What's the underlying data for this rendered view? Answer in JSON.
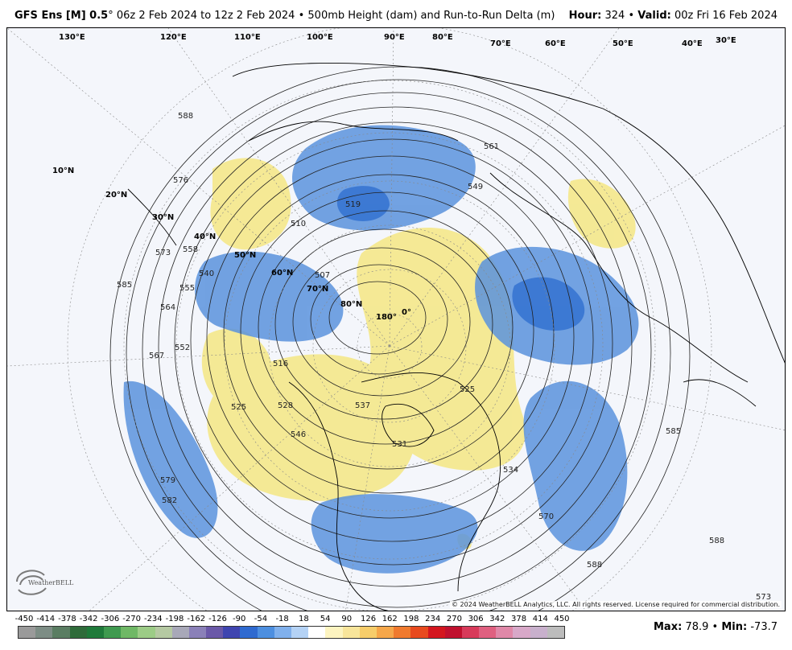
{
  "header": {
    "product": "GFS Ens [M] 0.5",
    "degree": "°",
    "run_range": "06z 2 Feb 2024 to 12z 2 Feb 2024",
    "sep": "•",
    "field": "500mb Height (dam) and Run-to-Run Delta (m)",
    "hour_label": "Hour:",
    "hour_value": "324",
    "valid_label": "Valid:",
    "valid_value": "00z Fri 16 Feb 2024"
  },
  "map": {
    "latitude_labels": [
      "10°N",
      "20°N",
      "30°N",
      "40°N",
      "50°N",
      "60°N",
      "70°N",
      "80°N"
    ],
    "longitude_labels": [
      "130°E",
      "120°E",
      "110°E",
      "100°E",
      "90°E",
      "80°E",
      "70°E",
      "60°E",
      "50°E",
      "40°E",
      "30°E",
      "180°",
      "0°"
    ],
    "contour_labels": [
      "588",
      "576",
      "573",
      "558",
      "555",
      "540",
      "564",
      "552",
      "567",
      "585",
      "579",
      "582",
      "525",
      "528",
      "546",
      "537",
      "531",
      "516",
      "510",
      "507",
      "519",
      "561",
      "549",
      "534",
      "570",
      "585",
      "588",
      "588",
      "573",
      "525"
    ],
    "colors": {
      "ocean": "#f4f6fb",
      "positive_anomaly": "#f5e88a",
      "negative_anomaly": "#5b93dd",
      "strong_negative": "#2f6fd0",
      "contour": "#222222",
      "coast": "#000000"
    },
    "copyright": "© 2024 WeatherBELL Analytics, LLC. All rights reserved. License required for commercial distribution.",
    "logo_text": "WeatherBELL"
  },
  "colorbar": {
    "labels": [
      "-450",
      "-414",
      "-378",
      "-342",
      "-306",
      "-270",
      "-234",
      "-198",
      "-162",
      "-126",
      "-90",
      "-54",
      "-18",
      "18",
      "54",
      "90",
      "126",
      "162",
      "198",
      "234",
      "270",
      "306",
      "342",
      "378",
      "414",
      "450"
    ],
    "colors": [
      "#9a9a9a",
      "#7d8d85",
      "#5a7d62",
      "#2f6b3a",
      "#1f7a3a",
      "#3f9a4f",
      "#6fb865",
      "#9ccc86",
      "#b5c9a2",
      "#a8a8b8",
      "#8a80b8",
      "#6a58a8",
      "#3f45b0",
      "#2f6ad0",
      "#4d8fe0",
      "#80b0ec",
      "#b4d2f5",
      "#ffffff",
      "#fdf4c0",
      "#f8e59a",
      "#f7cd6a",
      "#f6a74a",
      "#f07a2e",
      "#e84a1e",
      "#d4161e",
      "#c0102e",
      "#d83a5a",
      "#e06080",
      "#e088a8",
      "#d8a8c8",
      "#c8b0cc",
      "#bcbcbc"
    ]
  },
  "stats": {
    "max_label": "Max",
    "max_value": "78.9",
    "min_label": "Min",
    "min_value": "-73.7"
  }
}
